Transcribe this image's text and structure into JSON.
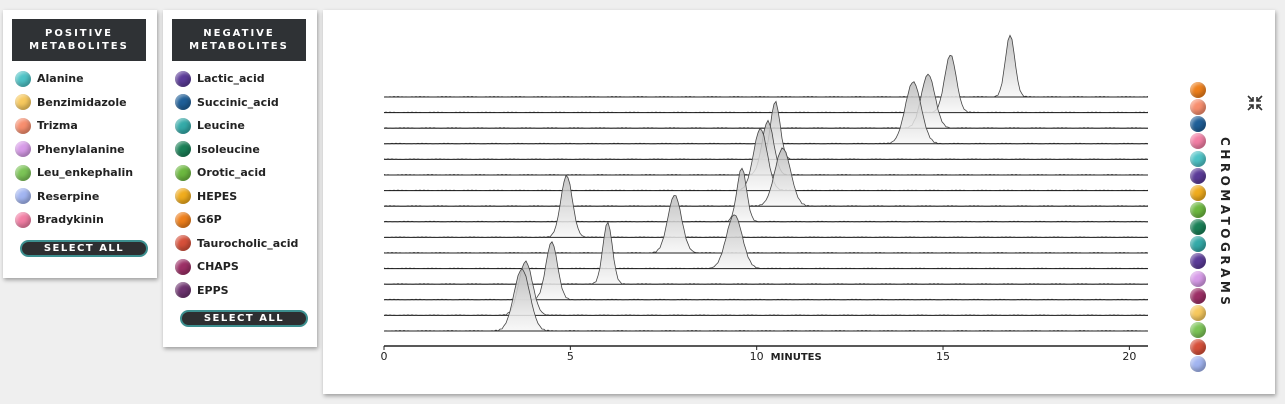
{
  "positive": {
    "title": "POSITIVE\nMETABOLITES",
    "items": [
      {
        "label": "Alanine",
        "color": "#4ec3c6"
      },
      {
        "label": "Benzimidazole",
        "color": "#f7c95e"
      },
      {
        "label": "Trizma",
        "color": "#f78e6e"
      },
      {
        "label": "Phenylalanine",
        "color": "#d79be8"
      },
      {
        "label": "Leu_enkephalin",
        "color": "#7cc457"
      },
      {
        "label": "Reserpine",
        "color": "#a2b5f1"
      },
      {
        "label": "Bradykinin",
        "color": "#f27ea4"
      }
    ],
    "select_all": "SELECT ALL"
  },
  "negative": {
    "title": "NEGATIVE\nMETABOLITES",
    "items": [
      {
        "label": "Lactic_acid",
        "color": "#5b3b98"
      },
      {
        "label": "Succinic_acid",
        "color": "#1f5f98"
      },
      {
        "label": "Leucine",
        "color": "#34aaa8"
      },
      {
        "label": "Isoleucine",
        "color": "#1a8057"
      },
      {
        "label": "Orotic_acid",
        "color": "#6cb83f"
      },
      {
        "label": "HEPES",
        "color": "#f0ac1d"
      },
      {
        "label": "G6P",
        "color": "#ee7f1b"
      },
      {
        "label": "Taurocholic_acid",
        "color": "#d6503a"
      },
      {
        "label": "CHAPS",
        "color": "#9c2f66"
      },
      {
        "label": "EPPS",
        "color": "#6e3470"
      }
    ],
    "select_all": "SELECT ALL"
  },
  "chart_data": {
    "type": "line",
    "xlabel": "MINUTES",
    "xlim": [
      0,
      20.5
    ],
    "xticks": [
      "0",
      "5",
      "10",
      "15",
      "20"
    ],
    "series": [
      {
        "peak_rt": 16.8
      },
      {
        "peak_rt": 15.2
      },
      {
        "peak_rt": 14.6
      },
      {
        "peak_rt": 14.2
      },
      {
        "peak_rt": 10.5
      },
      {
        "peak_rt": 10.3
      },
      {
        "peak_rt": 10.1
      },
      {
        "peak_rt": 10.7
      },
      {
        "peak_rt": 9.6
      },
      {
        "peak_rt": 4.9
      },
      {
        "peak_rt": 7.8
      },
      {
        "peak_rt": 9.4
      },
      {
        "peak_rt": 6.0
      },
      {
        "peak_rt": 4.5
      },
      {
        "peak_rt": 3.8
      },
      {
        "peak_rt": 3.7
      }
    ]
  },
  "chromatograms": {
    "title": "CHROMATOGRAMS",
    "colors": [
      "#ee7f1b",
      "#f78e6e",
      "#1f5f98",
      "#f27ea4",
      "#4ec3c6",
      "#5b3b98",
      "#f0ac1d",
      "#6cb83f",
      "#1a8057",
      "#34aaa8",
      "#5b3b98",
      "#d79be8",
      "#9c2f66",
      "#f7c95e",
      "#7cc457",
      "#d6503a",
      "#a2b5f1"
    ]
  },
  "icons": {
    "collapse": "collapse-arrows-icon"
  }
}
